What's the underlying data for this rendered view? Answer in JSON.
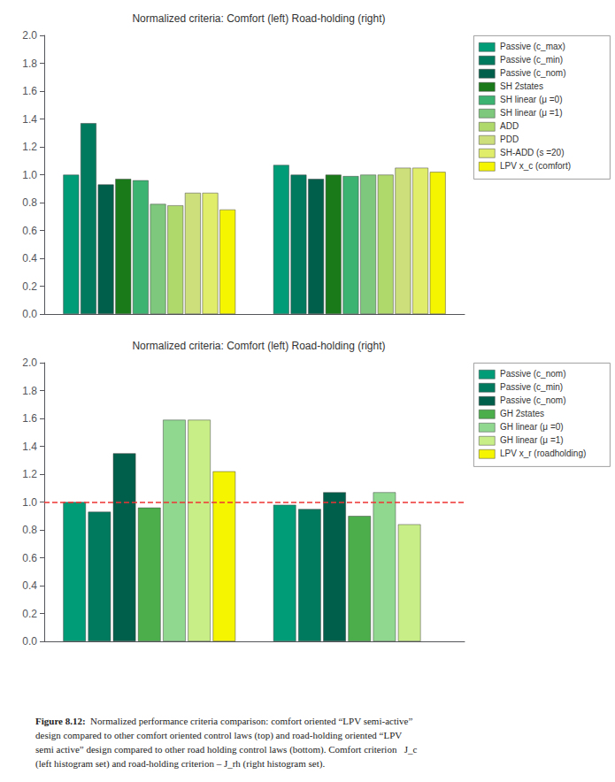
{
  "chart_data": [
    {
      "type": "bar",
      "title": "Normalized criteria: Comfort (left) Road-holding (right)",
      "categories": [
        null,
        null
      ],
      "series": [
        {
          "name": "Passive (c_max)",
          "color": "#009B77",
          "values": [
            1.0,
            1.07
          ]
        },
        {
          "name": "Passive (c_min)",
          "color": "#007A5E",
          "values": [
            1.37,
            1.0
          ]
        },
        {
          "name": "Passive (c_nom)",
          "color": "#005F4A",
          "values": [
            0.93,
            0.97
          ]
        },
        {
          "name": "SH 2states",
          "color": "#1A7A1A",
          "values": [
            0.97,
            1.0
          ]
        },
        {
          "name": "SH linear (μ =0)",
          "color": "#3CB371",
          "values": [
            0.96,
            0.99
          ]
        },
        {
          "name": "SH linear (μ =1)",
          "color": "#7DC87D",
          "values": [
            0.79,
            1.0
          ]
        },
        {
          "name": "ADD",
          "color": "#B0D96B",
          "values": [
            0.78,
            1.0
          ]
        },
        {
          "name": "PDD",
          "color": "#CCDF7A",
          "values": [
            0.87,
            1.05
          ]
        },
        {
          "name": "SH-ADD (s =20)",
          "color": "#DFED6A",
          "values": [
            0.87,
            1.05
          ]
        },
        {
          "name": "LPV x_c (comfort)",
          "color": "#F5F500",
          "values": [
            0.75,
            1.02
          ]
        }
      ],
      "ylim": [
        0,
        2.0
      ],
      "yticks": [
        {
          "value": 0,
          "label": "0.0"
        },
        0.2,
        0.4,
        0.6,
        0.8,
        {
          "value": 1.0,
          "label": "1.0"
        },
        1.2,
        1.4,
        1.6,
        1.8,
        {
          "value": 2.0,
          "label": "2.0"
        }
      ],
      "grid": false,
      "legend": "upper right"
    },
    {
      "type": "bar",
      "title": "Normalized criteria: Comfort (left) Road-holding (right)",
      "categories": [
        null,
        null
      ],
      "series": [
        {
          "name": "Passive (c_nom)",
          "color": "#009B77",
          "values": [
            1.0,
            0.98
          ]
        },
        {
          "name": "Passive (c_min)",
          "color": "#007A5E",
          "values": [
            0.93,
            0.95
          ]
        },
        {
          "name": "Passive (c_nom)",
          "color": "#005F4A",
          "values": [
            1.35,
            1.07
          ]
        },
        {
          "name": "GH 2states",
          "color": "#4BAE4B",
          "values": [
            0.96,
            0.9
          ]
        },
        {
          "name": "GH linear (μ =0)",
          "color": "#90D890",
          "values": [
            1.59,
            1.07
          ]
        },
        {
          "name": "GH linear (μ =1)",
          "color": "#C8EE88",
          "values": [
            1.59,
            0.84
          ]
        },
        {
          "name": "LPV x_r (roadholding)",
          "color": "#F5F500",
          "values": [
            1.22,
            null
          ]
        }
      ],
      "reference_lines": [
        {
          "y": 1.0,
          "color": "#EE3333",
          "line_style": "dashed"
        }
      ],
      "ylim": [
        0,
        2.0
      ],
      "yticks": [
        {
          "value": 0,
          "label": "0.0"
        },
        0.2,
        0.4,
        0.6,
        0.8,
        {
          "value": 1.0,
          "label": "1.0"
        },
        1.2,
        1.4,
        1.6,
        1.8,
        {
          "value": 2.0,
          "label": "2.0"
        }
      ],
      "grid": false,
      "legend": "upper right"
    }
  ],
  "caption_bold": "Figure 8.12:",
  "caption": "  Normalized performance criteria comparison: comfort oriented “LPV semi-active”\ndesign compared to other comfort oriented control laws (top) and road-holding oriented “LPV\nsemi active” design compared to other road holding control laws (bottom). Comfort criterion   J_c\n(left histogram set) and road-holding criterion – J_rh (right histogram set)."
}
